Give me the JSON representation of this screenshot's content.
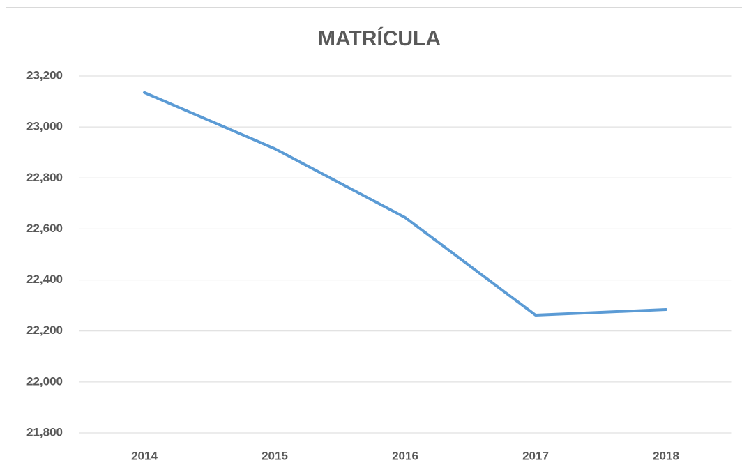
{
  "chart_data": {
    "type": "line",
    "title": "MATRÍCULA",
    "categories": [
      "2014",
      "2015",
      "2016",
      "2017",
      "2018"
    ],
    "series": [
      {
        "name": "Matrícula",
        "color": "#5b9bd5",
        "values": [
          23135,
          22915,
          22645,
          22262,
          22284
        ]
      }
    ],
    "ylim": [
      21800,
      23200
    ],
    "yticks": [
      {
        "value": 21800,
        "label": "21,800"
      },
      {
        "value": 22000,
        "label": "22,000"
      },
      {
        "value": 22200,
        "label": "22,200"
      },
      {
        "value": 22400,
        "label": "22,400"
      },
      {
        "value": 22600,
        "label": "22,600"
      },
      {
        "value": 22800,
        "label": "22,800"
      },
      {
        "value": 23000,
        "label": "23,000"
      },
      {
        "value": 23200,
        "label": "23,200"
      }
    ],
    "grid": true
  }
}
